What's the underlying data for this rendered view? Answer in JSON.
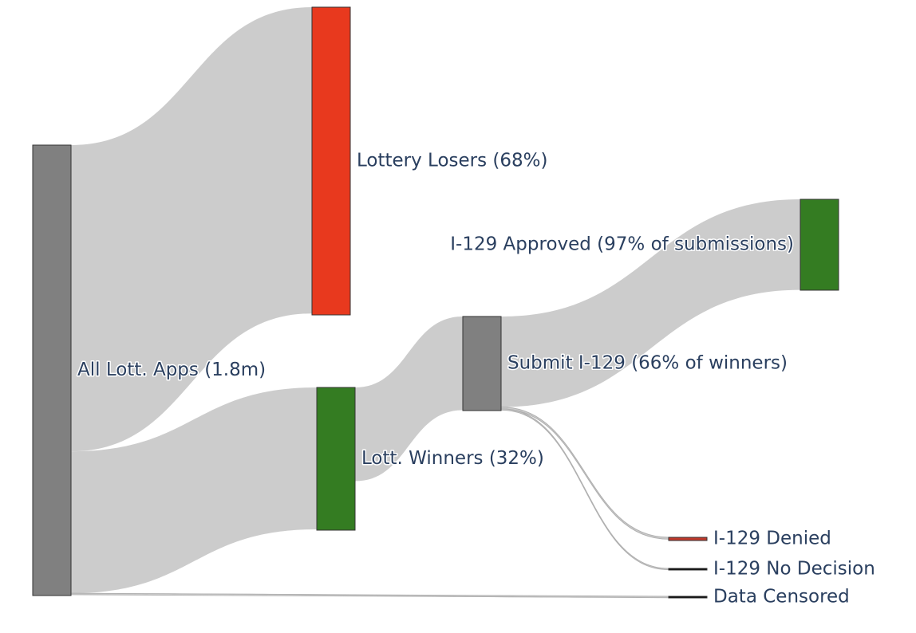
{
  "chart_data": {
    "type": "sankey",
    "nodes": [
      {
        "id": "all",
        "label": "All Lott. Apps (1.8m)",
        "color": "#808080"
      },
      {
        "id": "losers",
        "label": "Lottery Losers (68%)",
        "color": "#e8391e"
      },
      {
        "id": "winners",
        "label": "Lott. Winners (32%)",
        "color": "#347c22"
      },
      {
        "id": "submit",
        "label": "Submit I-129 (66% of winners)",
        "color": "#808080"
      },
      {
        "id": "approved",
        "label": "I-129 Approved (97% of submissions)",
        "color": "#347c22"
      },
      {
        "id": "denied",
        "label": "I-129 Denied",
        "color": "#c0392b"
      },
      {
        "id": "nodecision",
        "label": "I-129 No Decision",
        "color": "#000000"
      },
      {
        "id": "censored",
        "label": "Data Censored",
        "color": "#000000"
      }
    ],
    "links": [
      {
        "source": "all",
        "target": "losers",
        "share_of_total": 0.68
      },
      {
        "source": "all",
        "target": "winners",
        "share_of_total": 0.315
      },
      {
        "source": "all",
        "target": "censored",
        "share_of_total": 0.003
      },
      {
        "source": "winners",
        "target": "submit",
        "share_of_total": 0.208
      },
      {
        "source": "submit",
        "target": "approved",
        "share_of_total": 0.201
      },
      {
        "source": "submit",
        "target": "denied",
        "share_of_total": 0.004
      },
      {
        "source": "submit",
        "target": "nodecision",
        "share_of_total": 0.002
      }
    ],
    "link_color": "#cccccc"
  }
}
